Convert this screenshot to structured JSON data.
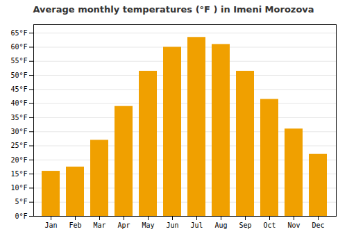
{
  "chart_data": {
    "type": "bar",
    "title": "Average monthly temperatures (°F ) in Imeni Morozova",
    "categories": [
      "Jan",
      "Feb",
      "Mar",
      "Apr",
      "May",
      "Jun",
      "Jul",
      "Aug",
      "Sep",
      "Oct",
      "Nov",
      "Dec"
    ],
    "values": [
      16,
      17.5,
      27,
      39,
      51.5,
      60,
      63.5,
      61,
      51.5,
      41.5,
      31,
      22
    ],
    "color": "#F0A000",
    "ylim": [
      0,
      68
    ],
    "yticks": [
      {
        "value": 0,
        "label": "0°F"
      },
      {
        "value": 5,
        "label": "5°F"
      },
      {
        "value": 10,
        "label": "10°F"
      },
      {
        "value": 15,
        "label": "15°F"
      },
      {
        "value": 20,
        "label": "20°F"
      },
      {
        "value": 25,
        "label": "25°F"
      },
      {
        "value": 30,
        "label": "30°F"
      },
      {
        "value": 35,
        "label": "35°F"
      },
      {
        "value": 40,
        "label": "40°F"
      },
      {
        "value": 45,
        "label": "45°F"
      },
      {
        "value": 50,
        "label": "50°F"
      },
      {
        "value": 55,
        "label": "55°F"
      },
      {
        "value": 60,
        "label": "60°F"
      },
      {
        "value": 65,
        "label": "65°F"
      }
    ],
    "grid": true
  }
}
